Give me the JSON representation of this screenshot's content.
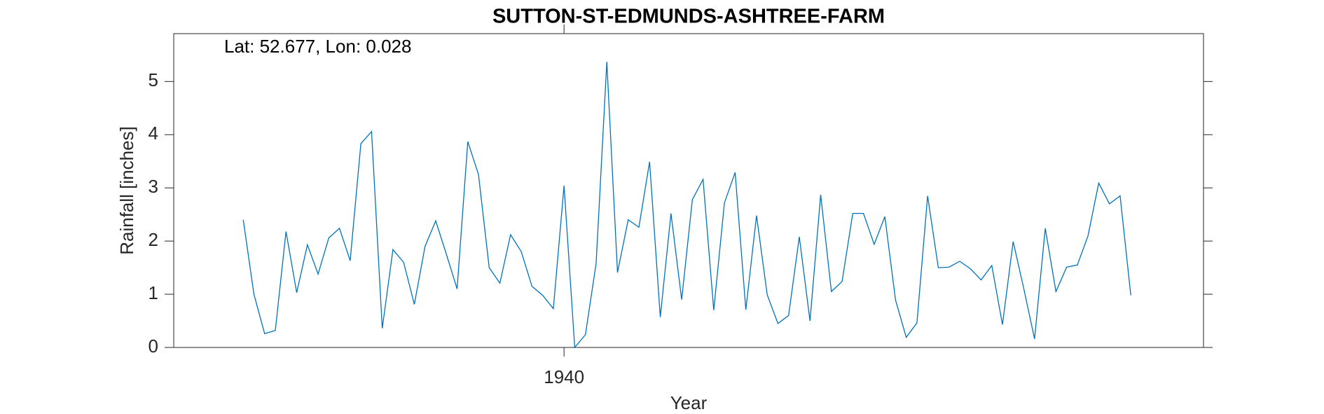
{
  "chart_data": {
    "type": "line",
    "title": "SUTTON-ST-EDMUNDS-ASHTREE-FARM",
    "annotation": "Lat: 52.677, Lon: 0.028",
    "xlabel": "Year",
    "ylabel": "Rainfall [inches]",
    "x": [
      1910,
      1911,
      1912,
      1913,
      1914,
      1915,
      1916,
      1917,
      1918,
      1919,
      1920,
      1921,
      1922,
      1923,
      1924,
      1925,
      1926,
      1927,
      1928,
      1929,
      1930,
      1931,
      1932,
      1933,
      1934,
      1935,
      1936,
      1937,
      1938,
      1939,
      1940,
      1941,
      1942,
      1943,
      1944,
      1945,
      1946,
      1947,
      1948,
      1949,
      1950,
      1951,
      1952,
      1953,
      1954,
      1955,
      1956,
      1957,
      1958,
      1959,
      1960,
      1961,
      1962,
      1963,
      1964,
      1965,
      1966,
      1967,
      1968,
      1969,
      1970,
      1971,
      1972,
      1973,
      1974,
      1975,
      1976,
      1977,
      1978,
      1979,
      1980,
      1981,
      1982,
      1983,
      1984,
      1985,
      1986,
      1987,
      1988,
      1989,
      1990,
      1991,
      1992,
      1993
    ],
    "series": [
      {
        "color": "#0072bd",
        "values": [
          2.4,
          1.0,
          0.26,
          0.32,
          2.18,
          1.03,
          1.93,
          1.38,
          2.06,
          2.24,
          1.63,
          3.83,
          4.06,
          0.36,
          1.84,
          1.6,
          0.81,
          1.9,
          2.38,
          1.75,
          1.1,
          3.87,
          3.25,
          1.5,
          1.21,
          2.12,
          1.8,
          1.15,
          0.98,
          0.73,
          3.04,
          0.0,
          0.24,
          1.58,
          5.37,
          1.41,
          2.4,
          2.26,
          3.49,
          0.57,
          2.52,
          0.9,
          2.78,
          3.16,
          0.7,
          2.72,
          3.29,
          0.71,
          2.48,
          0.99,
          0.45,
          0.6,
          2.08,
          0.5,
          2.87,
          1.05,
          1.24,
          2.52,
          2.52,
          1.94,
          2.46,
          0.89,
          0.19,
          0.46,
          2.85,
          1.5,
          1.51,
          1.62,
          1.48,
          1.27,
          1.54,
          0.43,
          1.99,
          1.1,
          0.16,
          2.24,
          1.05,
          1.51,
          1.55,
          2.1,
          3.09,
          2.7,
          2.85,
          0.98
        ]
      }
    ],
    "xlim": [
      1903.5,
      1999.8
    ],
    "xticks": [
      1940
    ],
    "ylim": [
      0,
      5.9
    ],
    "yticks": [
      0,
      1,
      2,
      3,
      4,
      5
    ]
  }
}
